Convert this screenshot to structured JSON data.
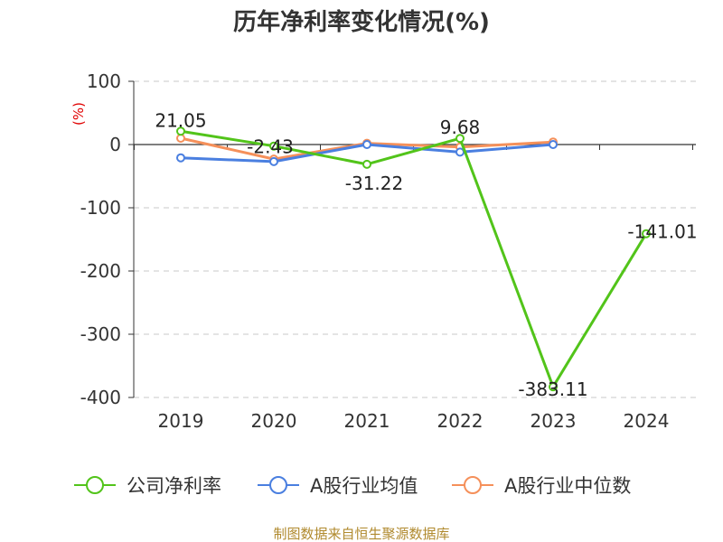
{
  "chart_data": {
    "type": "line",
    "title": "历年净利率变化情况(%)",
    "ylabel": "(%)",
    "xlabel": "",
    "categories": [
      "2019",
      "2020",
      "2021",
      "2022",
      "2023",
      "2024"
    ],
    "ylim": [
      -400,
      100
    ],
    "yticks": [
      100,
      0,
      -100,
      -200,
      -300,
      -400
    ],
    "grid": true,
    "legend_position": "bottom",
    "series": [
      {
        "name": "公司净利率",
        "color": "#52c41a",
        "values": [
          21.05,
          -2.43,
          -31.22,
          9.68,
          -383.11,
          -141.01
        ],
        "labels": [
          "21.05",
          "-2.43",
          "-31.22",
          "9.68",
          "-383.11",
          "-141.01"
        ]
      },
      {
        "name": "A股行业均值",
        "color": "#4a7fe0",
        "values": [
          -21,
          -27,
          0,
          -12,
          0,
          null
        ]
      },
      {
        "name": "A股行业中位数",
        "color": "#f5905a",
        "values": [
          10,
          -23,
          2,
          -4,
          4,
          null
        ]
      }
    ],
    "source": "制图数据来自恒生聚源数据库"
  }
}
